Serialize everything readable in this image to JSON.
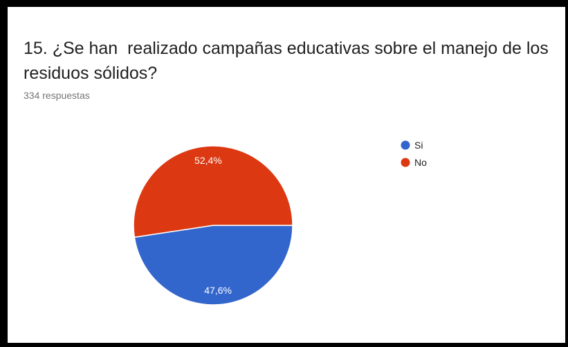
{
  "question": {
    "title": "15. ¿Se han  realizado campañas educativas sobre el manejo de los residuos sólidos?",
    "responses": "334 respuestas"
  },
  "chart_data": {
    "type": "pie",
    "categories": [
      "Si",
      "No"
    ],
    "values": [
      47.6,
      52.4
    ],
    "labels": [
      "47,6%",
      "52,4%"
    ],
    "colors": [
      "#3366cc",
      "#dc3912"
    ],
    "legend": {
      "position": "right",
      "items": [
        "Si",
        "No"
      ]
    }
  }
}
